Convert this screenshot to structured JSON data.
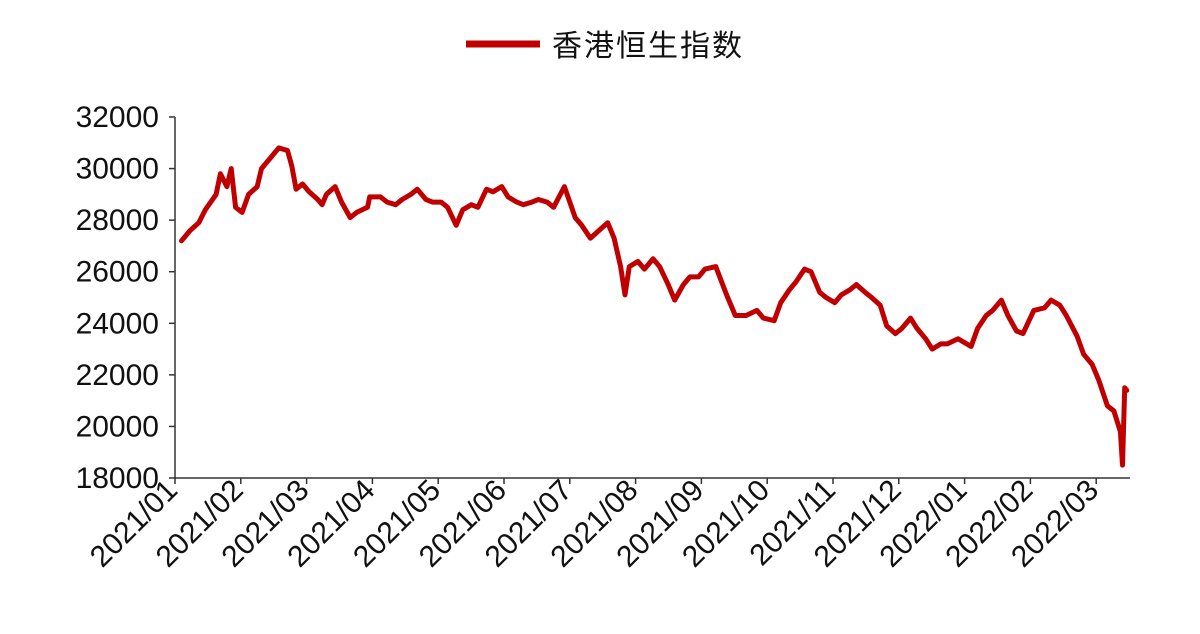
{
  "chart_data": {
    "type": "line",
    "title": "",
    "xlabel": "",
    "ylabel": "",
    "ylim": [
      18000,
      32000
    ],
    "yticks": [
      "32000",
      "30000",
      "28000",
      "26000",
      "24000",
      "22000",
      "20000",
      "18000"
    ],
    "categories": [
      "2021/01",
      "2021/02",
      "2021/03",
      "2021/04",
      "2021/05",
      "2021/06",
      "2021/07",
      "2021/08",
      "2021/09",
      "2021/10",
      "2021/11",
      "2021/12",
      "2022/01",
      "2022/02",
      "2022/03"
    ],
    "grid": false,
    "legend": {
      "position": "top-center"
    },
    "series": [
      {
        "name": "香港恒生指数",
        "color": "#C00000",
        "x": [
          "2021-01-04",
          "2021-01-08",
          "2021-01-12",
          "2021-01-15",
          "2021-01-20",
          "2021-01-22",
          "2021-01-25",
          "2021-01-27",
          "2021-01-29",
          "2021-02-01",
          "2021-02-04",
          "2021-02-08",
          "2021-02-10",
          "2021-02-18",
          "2021-02-22",
          "2021-02-24",
          "2021-02-26",
          "2021-03-01",
          "2021-03-04",
          "2021-03-08",
          "2021-03-10",
          "2021-03-12",
          "2021-03-16",
          "2021-03-19",
          "2021-03-23",
          "2021-03-26",
          "2021-03-31",
          "2021-04-01",
          "2021-04-06",
          "2021-04-09",
          "2021-04-13",
          "2021-04-16",
          "2021-04-20",
          "2021-04-23",
          "2021-04-27",
          "2021-04-30",
          "2021-05-04",
          "2021-05-07",
          "2021-05-11",
          "2021-05-14",
          "2021-05-18",
          "2021-05-21",
          "2021-05-25",
          "2021-05-28",
          "2021-06-01",
          "2021-06-04",
          "2021-06-08",
          "2021-06-11",
          "2021-06-15",
          "2021-06-18",
          "2021-06-22",
          "2021-06-25",
          "2021-06-30",
          "2021-07-05",
          "2021-07-08",
          "2021-07-12",
          "2021-07-16",
          "2021-07-20",
          "2021-07-23",
          "2021-07-26",
          "2021-07-28",
          "2021-07-30",
          "2021-08-03",
          "2021-08-06",
          "2021-08-10",
          "2021-08-13",
          "2021-08-17",
          "2021-08-20",
          "2021-08-24",
          "2021-08-27",
          "2021-08-31",
          "2021-09-03",
          "2021-09-08",
          "2021-09-13",
          "2021-09-17",
          "2021-09-22",
          "2021-09-27",
          "2021-09-30",
          "2021-10-05",
          "2021-10-08",
          "2021-10-12",
          "2021-10-15",
          "2021-10-19",
          "2021-10-22",
          "2021-10-26",
          "2021-10-29",
          "2021-11-02",
          "2021-11-05",
          "2021-11-09",
          "2021-11-12",
          "2021-11-16",
          "2021-11-19",
          "2021-11-23",
          "2021-11-26",
          "2021-11-30",
          "2021-12-03",
          "2021-12-07",
          "2021-12-10",
          "2021-12-14",
          "2021-12-17",
          "2021-12-21",
          "2021-12-24",
          "2021-12-29",
          "2022-01-04",
          "2022-01-07",
          "2022-01-11",
          "2022-01-14",
          "2022-01-18",
          "2022-01-21",
          "2022-01-25",
          "2022-01-28",
          "2022-02-02",
          "2022-02-07",
          "2022-02-10",
          "2022-02-14",
          "2022-02-17",
          "2022-02-22",
          "2022-02-25",
          "2022-03-01",
          "2022-03-04",
          "2022-03-08",
          "2022-03-11",
          "2022-03-14",
          "2022-03-15",
          "2022-03-16",
          "2022-03-17"
        ],
        "y": [
          27200,
          27600,
          27900,
          28400,
          29000,
          29800,
          29300,
          30000,
          28500,
          28300,
          29000,
          29300,
          30000,
          30800,
          30700,
          30100,
          29200,
          29400,
          29100,
          28800,
          28600,
          29000,
          29300,
          28700,
          28100,
          28300,
          28500,
          28900,
          28900,
          28700,
          28600,
          28800,
          29000,
          29200,
          28800,
          28700,
          28700,
          28500,
          27800,
          28400,
          28600,
          28500,
          29200,
          29100,
          29300,
          28900,
          28700,
          28600,
          28700,
          28800,
          28700,
          28500,
          29300,
          28100,
          27800,
          27300,
          27600,
          27900,
          27300,
          26200,
          25100,
          26200,
          26400,
          26100,
          26500,
          26200,
          25500,
          24900,
          25500,
          25800,
          25800,
          26100,
          26200,
          25100,
          24300,
          24300,
          24500,
          24200,
          24100,
          24800,
          25300,
          25600,
          26100,
          26000,
          25200,
          25000,
          24800,
          25100,
          25300,
          25500,
          25200,
          25000,
          24700,
          23900,
          23600,
          23800,
          24200,
          23800,
          23400,
          23000,
          23200,
          23200,
          23400,
          23100,
          23800,
          24300,
          24500,
          24900,
          24300,
          23700,
          23600,
          24500,
          24600,
          24900,
          24700,
          24300,
          23500,
          22800,
          22400,
          21800,
          20800,
          20600,
          19800,
          18500,
          21500,
          21400
        ]
      }
    ]
  }
}
